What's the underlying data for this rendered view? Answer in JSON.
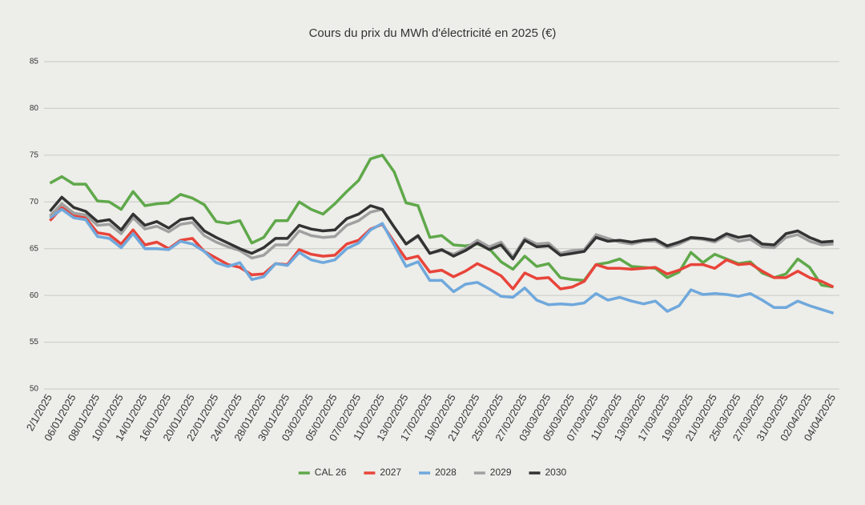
{
  "chart_data": {
    "type": "line",
    "title": "Cours du prix du MWh d'électricité en 2025 (€)",
    "categories": [
      "2/1/2025",
      null,
      "06/01/2025",
      null,
      "08/01/2025",
      null,
      "10/01/2025",
      null,
      "14/01/2025",
      null,
      "16/01/2025",
      null,
      "20/01/2025",
      null,
      "22/01/2025",
      null,
      "24/01/2025",
      null,
      "28/01/2025",
      null,
      "30/01/2025",
      null,
      "03/02/2025",
      null,
      "05/02/2025",
      null,
      "07/02/2025",
      null,
      "11/02/2025",
      null,
      "13/02/2025",
      null,
      "17/02/2025",
      null,
      "19/02/2025",
      null,
      "21/02/2025",
      null,
      "25/02/2025",
      null,
      "27/02/2025",
      null,
      "03/03/2025",
      null,
      "05/03/2025",
      null,
      "07/03/2025",
      null,
      "11/03/2025",
      null,
      "13/03/2025",
      null,
      "17/03/2025",
      null,
      "19/03/2025",
      null,
      "21/03/2025",
      null,
      "25/03/2025",
      null,
      "27/03/2025",
      null,
      "31/03/2025",
      null,
      "02/04/2025",
      null,
      "04/04/2025"
    ],
    "series": [
      {
        "name": "CAL 26",
        "color": "#5fa84a",
        "values": [
          72.0,
          72.7,
          71.9,
          71.9,
          70.1,
          70.0,
          69.2,
          71.1,
          69.6,
          69.8,
          69.9,
          70.8,
          70.4,
          69.7,
          67.9,
          67.7,
          68.0,
          65.6,
          66.2,
          68.0,
          68.0,
          70.0,
          69.2,
          68.7,
          69.8,
          71.1,
          72.3,
          74.6,
          75.0,
          73.2,
          69.9,
          69.6,
          66.2,
          66.4,
          65.4,
          65.3,
          65.5,
          65.0,
          63.6,
          62.8,
          64.2,
          63.1,
          63.4,
          61.9,
          61.7,
          61.6,
          63.3,
          63.5,
          63.9,
          63.1,
          63.0,
          62.9,
          61.9,
          62.5,
          64.6,
          63.5,
          64.4,
          63.9,
          63.4,
          63.6,
          62.4,
          61.9,
          62.3,
          63.9,
          63.0,
          61.1,
          60.9
        ]
      },
      {
        "name": "2027",
        "color": "#e8443a",
        "values": [
          68.0,
          69.4,
          68.5,
          68.3,
          66.7,
          66.5,
          65.5,
          67.0,
          65.4,
          65.7,
          65.0,
          65.9,
          66.1,
          64.7,
          64.0,
          63.3,
          63.0,
          62.2,
          62.3,
          63.4,
          63.3,
          64.9,
          64.4,
          64.2,
          64.3,
          65.5,
          65.9,
          67.1,
          67.6,
          65.7,
          63.9,
          64.2,
          62.5,
          62.7,
          62.0,
          62.6,
          63.4,
          62.8,
          62.1,
          60.7,
          62.4,
          61.8,
          61.9,
          60.7,
          60.9,
          61.5,
          63.3,
          62.9,
          62.9,
          62.8,
          62.9,
          63.0,
          62.3,
          62.7,
          63.3,
          63.3,
          62.9,
          63.8,
          63.3,
          63.4,
          62.6,
          61.9,
          61.9,
          62.6,
          61.9,
          61.5,
          60.9
        ]
      },
      {
        "name": "2028",
        "color": "#6fa8dc",
        "values": [
          68.3,
          69.2,
          68.3,
          68.1,
          66.3,
          66.1,
          65.1,
          66.6,
          65.0,
          65.0,
          64.9,
          65.8,
          65.5,
          64.7,
          63.5,
          63.1,
          63.5,
          61.7,
          62.0,
          63.4,
          63.2,
          64.6,
          63.8,
          63.5,
          63.8,
          65.0,
          65.6,
          67.0,
          67.7,
          65.4,
          63.1,
          63.6,
          61.6,
          61.6,
          60.4,
          61.2,
          61.4,
          60.7,
          59.9,
          59.8,
          60.8,
          59.5,
          59.0,
          59.1,
          59.0,
          59.2,
          60.2,
          59.5,
          59.8,
          59.4,
          59.1,
          59.4,
          58.3,
          58.9,
          60.6,
          60.1,
          60.2,
          60.1,
          59.9,
          60.2,
          59.5,
          58.7,
          58.7,
          59.4,
          58.9,
          58.5,
          58.1
        ]
      },
      {
        "name": "2029",
        "color": "#a0a0a0",
        "values": [
          68.5,
          69.8,
          68.8,
          68.6,
          67.5,
          67.6,
          66.6,
          68.3,
          67.1,
          67.4,
          66.8,
          67.6,
          67.8,
          66.4,
          65.7,
          65.2,
          64.8,
          64.0,
          64.3,
          65.4,
          65.4,
          66.9,
          66.4,
          66.2,
          66.3,
          67.5,
          68.0,
          68.9,
          69.2,
          67.3,
          65.5,
          66.3,
          64.5,
          64.8,
          64.4,
          65.0,
          65.9,
          65.2,
          65.7,
          64.1,
          66.1,
          65.5,
          65.6,
          64.5,
          64.8,
          64.9,
          66.5,
          66.1,
          65.7,
          65.5,
          65.8,
          65.8,
          65.1,
          65.5,
          66.1,
          66.0,
          65.7,
          66.4,
          65.8,
          66.0,
          65.2,
          65.1,
          66.2,
          66.5,
          65.8,
          65.4,
          65.5
        ]
      },
      {
        "name": "2030",
        "color": "#333333",
        "values": [
          69.0,
          70.5,
          69.4,
          69.0,
          67.9,
          68.1,
          67.0,
          68.7,
          67.5,
          67.9,
          67.2,
          68.1,
          68.3,
          66.9,
          66.2,
          65.6,
          65.0,
          64.5,
          65.1,
          66.1,
          66.1,
          67.5,
          67.1,
          66.9,
          67.0,
          68.2,
          68.7,
          69.6,
          69.2,
          67.3,
          65.5,
          66.4,
          64.5,
          64.9,
          64.2,
          64.8,
          65.6,
          64.9,
          65.4,
          63.9,
          65.9,
          65.2,
          65.3,
          64.3,
          64.5,
          64.7,
          66.2,
          65.8,
          65.9,
          65.7,
          65.9,
          66.0,
          65.3,
          65.7,
          66.2,
          66.1,
          65.9,
          66.6,
          66.2,
          66.4,
          65.5,
          65.4,
          66.6,
          66.9,
          66.2,
          65.7,
          65.8
        ]
      }
    ],
    "ylim": [
      50,
      85
    ],
    "yticks": [
      50,
      55,
      60,
      65,
      70,
      75,
      80,
      85
    ],
    "grid": true,
    "legend": "bottom"
  }
}
